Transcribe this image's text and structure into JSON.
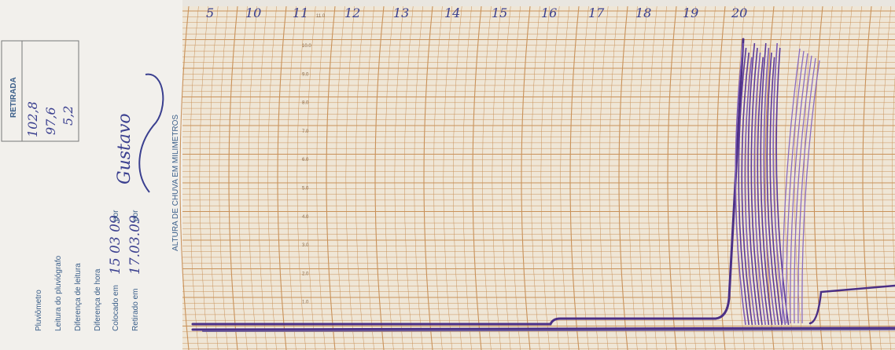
{
  "form": {
    "retirada": {
      "title": "RETIRADA",
      "values": [
        "102,8",
        "97,6",
        "5,2"
      ]
    },
    "fields": [
      {
        "label": "Pluviômetro"
      },
      {
        "label": "Leitura do pluviógrafo"
      },
      {
        "label": "Diferença de leitura"
      },
      {
        "label": "Diferença de hora"
      },
      {
        "label": "Colocado em",
        "value": "15 03 09",
        "by": "por"
      },
      {
        "label": "Retirado em",
        "value": "17.03.09",
        "by": "por"
      }
    ],
    "signature": "Gustavo"
  },
  "chart": {
    "axis_title": "ALTURA DE CHUVA EM MILIMETROS",
    "scale_labels": [
      "11.0",
      "10.0",
      "9.0",
      "8.0",
      "7.0",
      "6.0",
      "5.0",
      "4.0",
      "3.0",
      "2.0",
      "1.0"
    ],
    "hour_marks": [
      "5",
      "10",
      "11",
      "12",
      "13",
      "14",
      "15",
      "16",
      "17",
      "18",
      "19",
      "20"
    ]
  }
}
